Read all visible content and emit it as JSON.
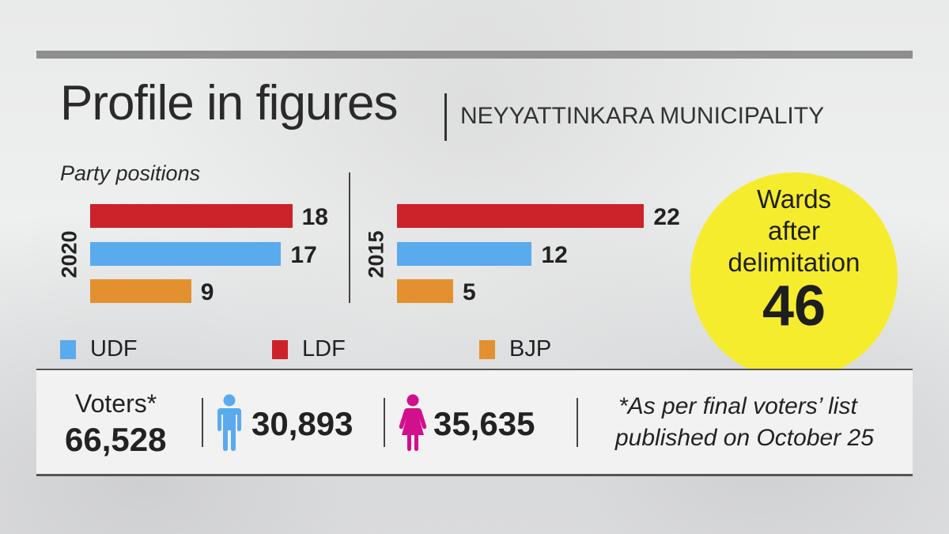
{
  "header": {
    "title": "Profile in figures",
    "subtitle": "NEYYATTINKARA  MUNICIPALITY"
  },
  "chart_data": {
    "type": "bar",
    "title": "Party positions",
    "orientation": "horizontal",
    "groups": [
      {
        "year": "2020",
        "bars": [
          {
            "party": "LDF",
            "value": 18
          },
          {
            "party": "UDF",
            "value": 17
          },
          {
            "party": "BJP",
            "value": 9
          }
        ]
      },
      {
        "year": "2015",
        "bars": [
          {
            "party": "LDF",
            "value": 22
          },
          {
            "party": "UDF",
            "value": 12
          },
          {
            "party": "BJP",
            "value": 5
          }
        ]
      }
    ],
    "legend": [
      {
        "label": "UDF",
        "color": "#5aaaee"
      },
      {
        "label": "LDF",
        "color": "#cc2229"
      },
      {
        "label": "BJP",
        "color": "#e39130"
      }
    ],
    "legend_position": "bottom-left"
  },
  "colors": {
    "LDF": "#cc2229",
    "UDF": "#5aaaee",
    "BJP": "#e39130",
    "circle": "#f5ec2e",
    "male": "#5aaaee",
    "female": "#d0108c"
  },
  "wards": {
    "line1": "Wards",
    "line2": "after",
    "line3": "delimitation",
    "value": "46"
  },
  "voters": {
    "label": "Voters*",
    "total": "66,528",
    "male": "30,893",
    "female": "35,635",
    "male_icon": "male-person-icon",
    "female_icon": "female-person-icon",
    "note_line1": "*As per final voters’ list",
    "note_line2": "published on October 25"
  }
}
